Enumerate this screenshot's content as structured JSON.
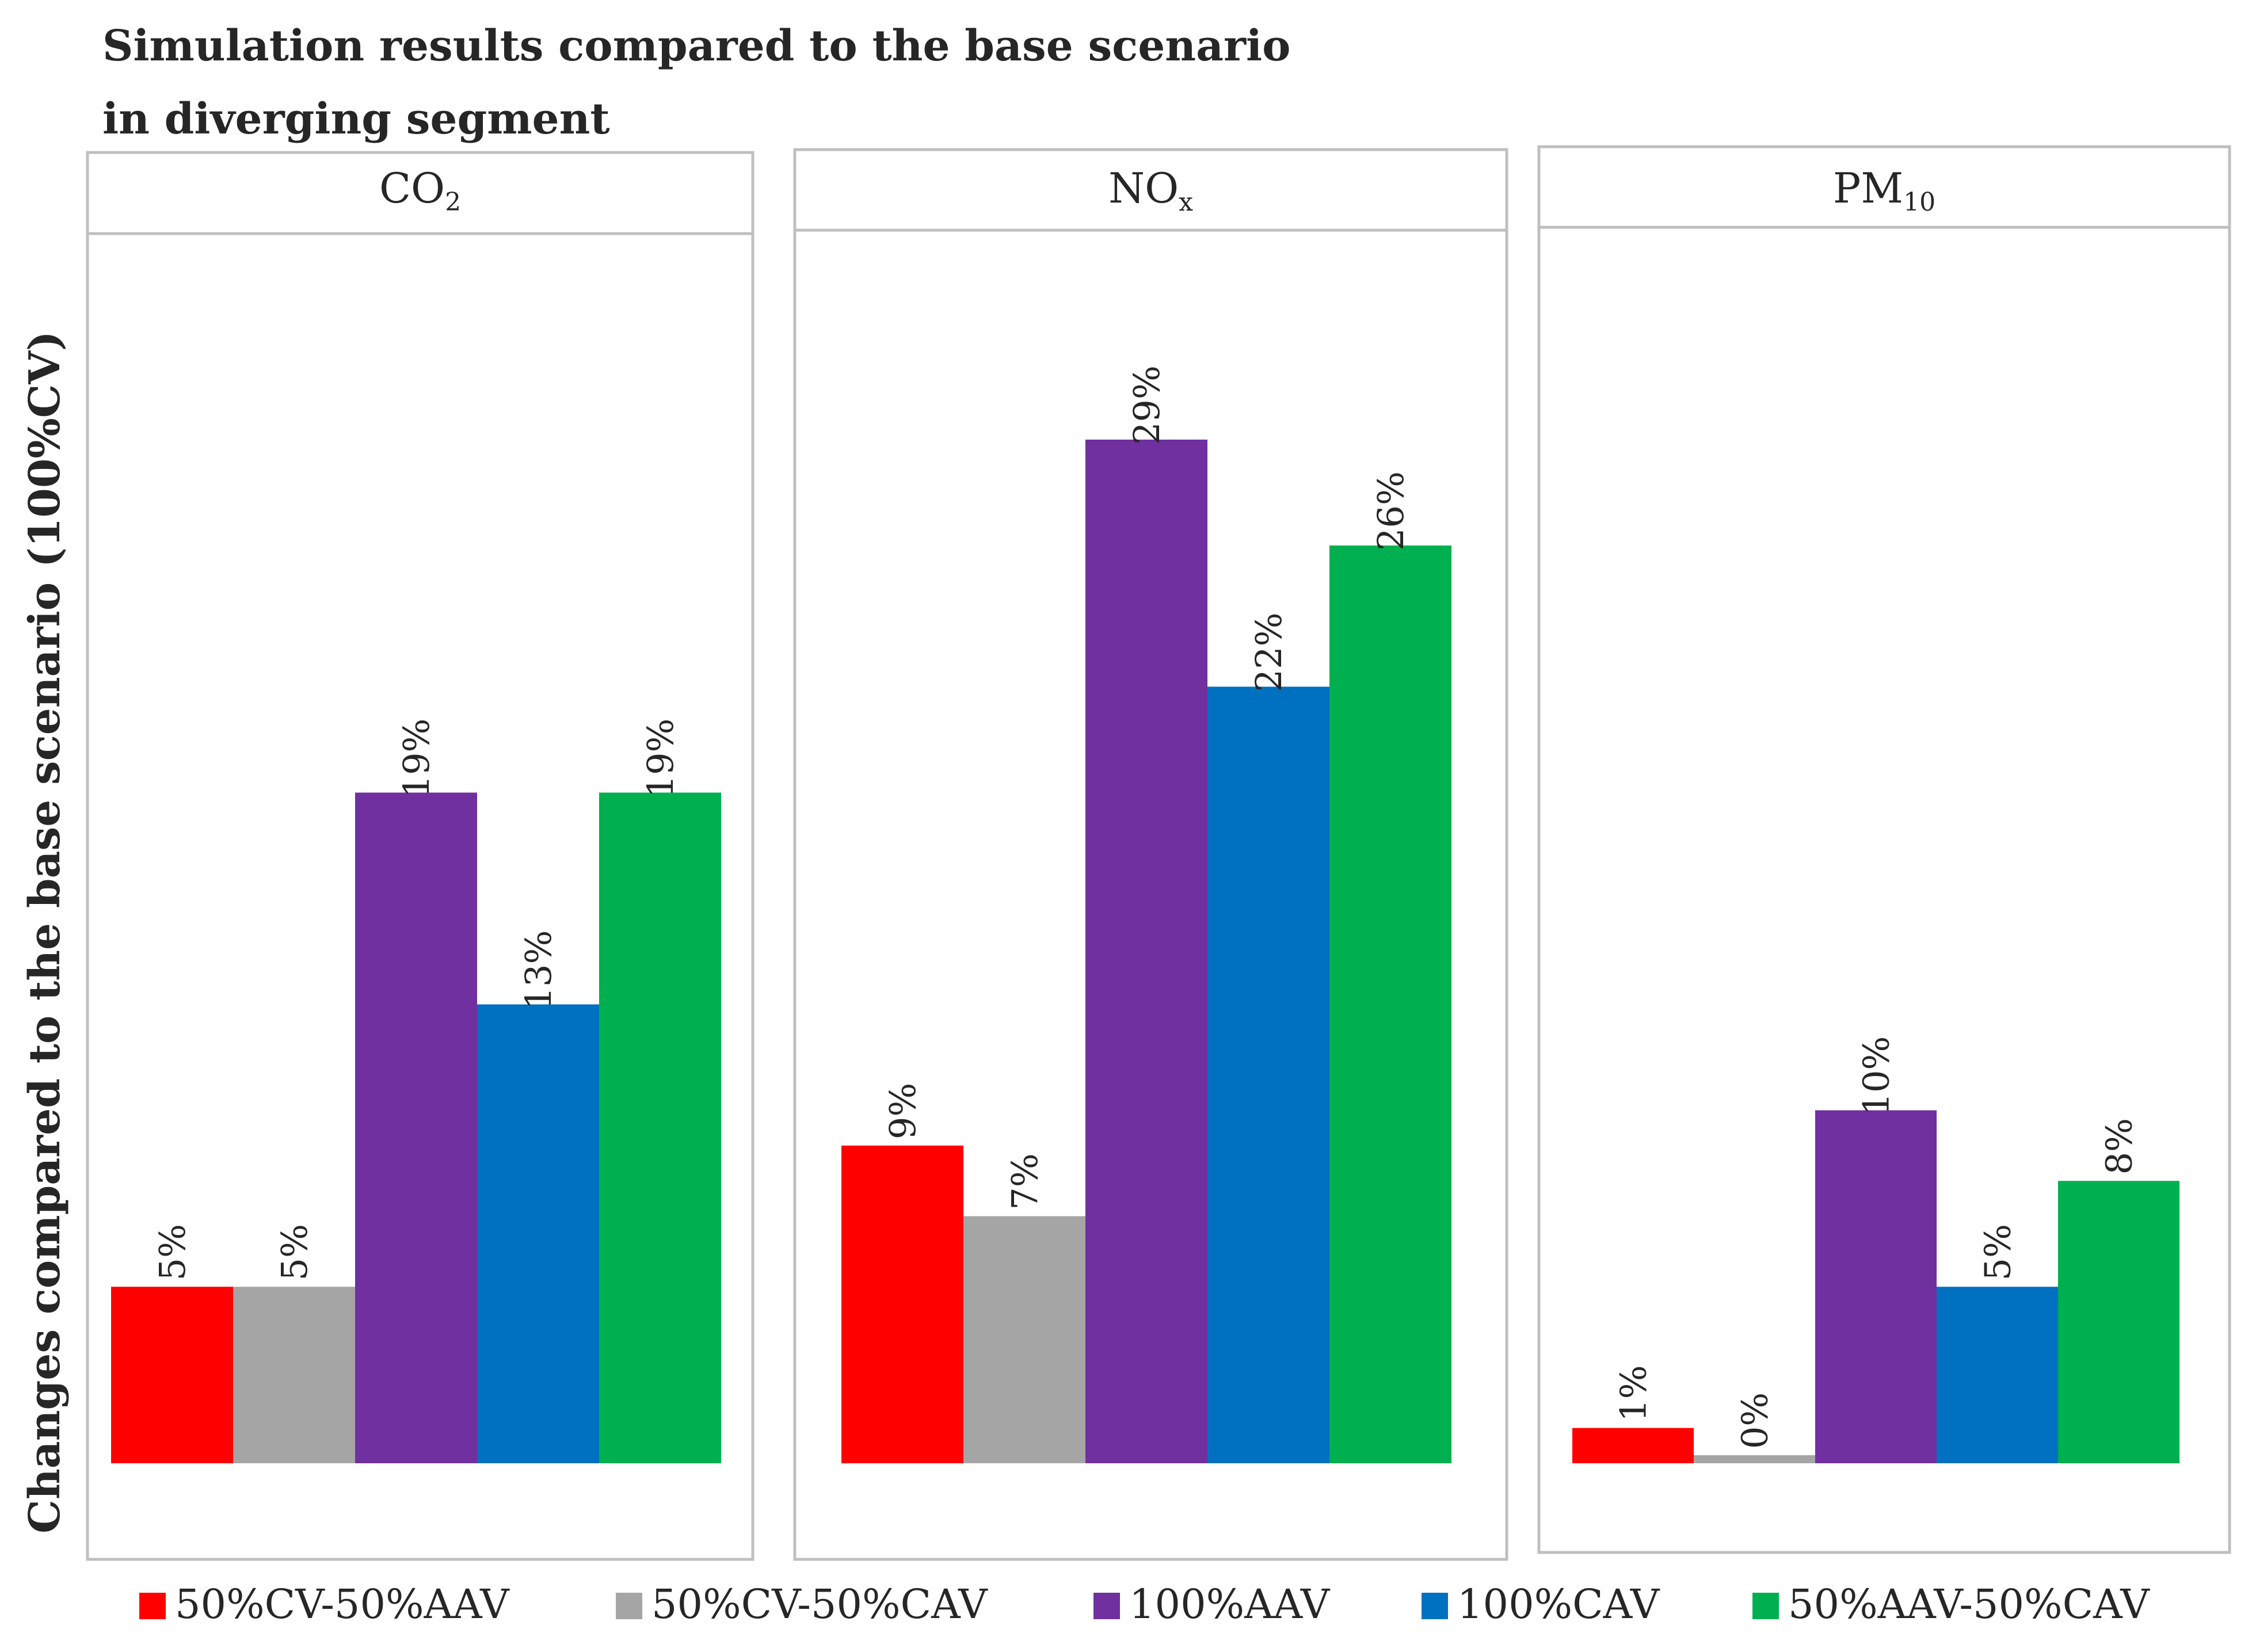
{
  "chart_data": {
    "type": "bar",
    "title": [
      "Simulation results compared to the base scenario",
      "in diverging segment"
    ],
    "ylabel": "Changes compared to the base scenario (100%CV)",
    "xlabel": "",
    "ylim": [
      0,
      0.36
    ],
    "grid": false,
    "legend_position": "bottom",
    "series": [
      {
        "name": "50%CV-50%AAV",
        "color": "#FF0000"
      },
      {
        "name": "50%CV-50%CAV",
        "color": "#A5A5A5"
      },
      {
        "name": "100%AAV",
        "color": "#7030A0"
      },
      {
        "name": "100%CAV",
        "color": "#0070C0"
      },
      {
        "name": "50%AAV-50%CAV",
        "color": "#00B050"
      }
    ],
    "panels": [
      {
        "name": "CO2",
        "label_main": "CO",
        "label_sub": "2",
        "values": [
          0.05,
          0.05,
          0.19,
          0.13,
          0.19
        ],
        "labels": [
          "5%",
          "5%",
          "19%",
          "13%",
          "19%"
        ]
      },
      {
        "name": "NOx",
        "label_main": "NO",
        "label_sub": "x",
        "values": [
          0.09,
          0.07,
          0.29,
          0.22,
          0.26
        ],
        "labels": [
          "9%",
          "7%",
          "29%",
          "22%",
          "26%"
        ]
      },
      {
        "name": "PM10",
        "label_main": "PM",
        "label_sub": "10",
        "values": [
          0.01,
          0.0,
          0.1,
          0.05,
          0.08
        ],
        "labels": [
          "1%",
          "0%",
          "10%",
          "5%",
          "8%"
        ]
      }
    ]
  }
}
